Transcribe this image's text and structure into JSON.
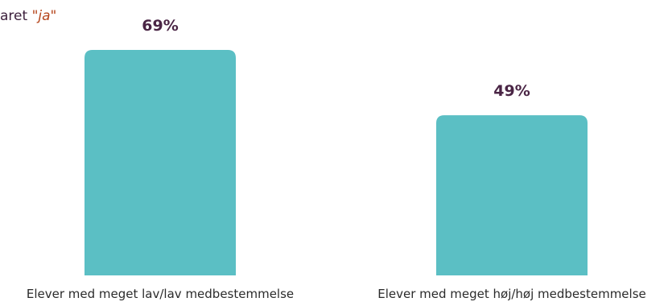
{
  "caption": {
    "text": "aret ",
    "emphasis": "\"ja\""
  },
  "colors": {
    "bar": "#5bbfc4",
    "value_label": "#4a2545",
    "category_label": "#2b2b2b",
    "caption": "#3b1f3b",
    "caption_emphasis": "#b5451b"
  },
  "chart_data": {
    "type": "bar",
    "categories": [
      "Elever med meget lav/lav medbestemmelse",
      "Elever med meget høj/høj medbestemmelse"
    ],
    "values": [
      69,
      49
    ],
    "value_labels": [
      "69%",
      "49%"
    ],
    "unit": "%",
    "title": "",
    "xlabel": "",
    "ylabel": "",
    "ylim": [
      0,
      69
    ],
    "grid": false,
    "legend": "none"
  }
}
